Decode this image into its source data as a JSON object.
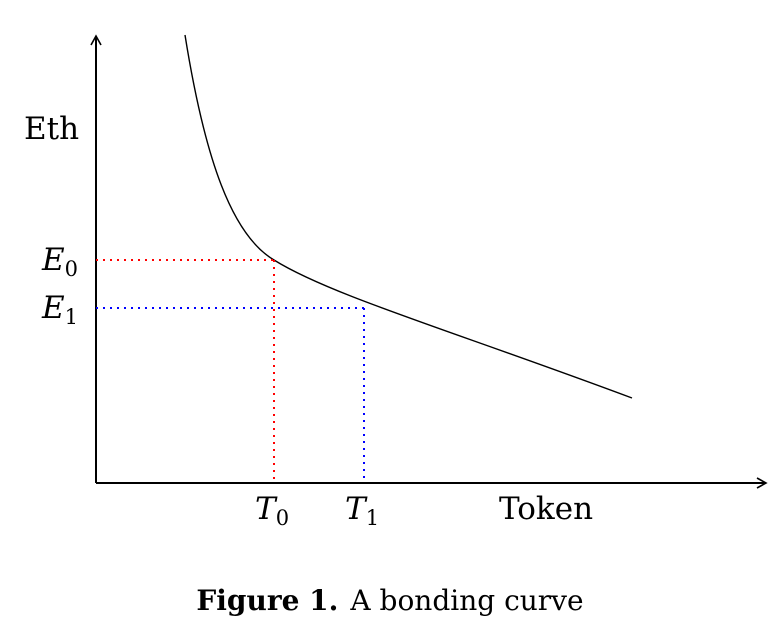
{
  "diagram": {
    "y_axis_label": "Eth",
    "x_axis_label": "Token",
    "e0": {
      "base": "E",
      "sub": "0"
    },
    "e1": {
      "base": "E",
      "sub": "1"
    },
    "t0": {
      "base": "T",
      "sub": "0"
    },
    "t1": {
      "base": "T",
      "sub": "1"
    },
    "guide_colors": {
      "e0_t0": "#ff0000",
      "e1_t1": "#0000ff"
    }
  },
  "caption": {
    "prefix": "Figure 1.",
    "text": "A bonding curve"
  }
}
